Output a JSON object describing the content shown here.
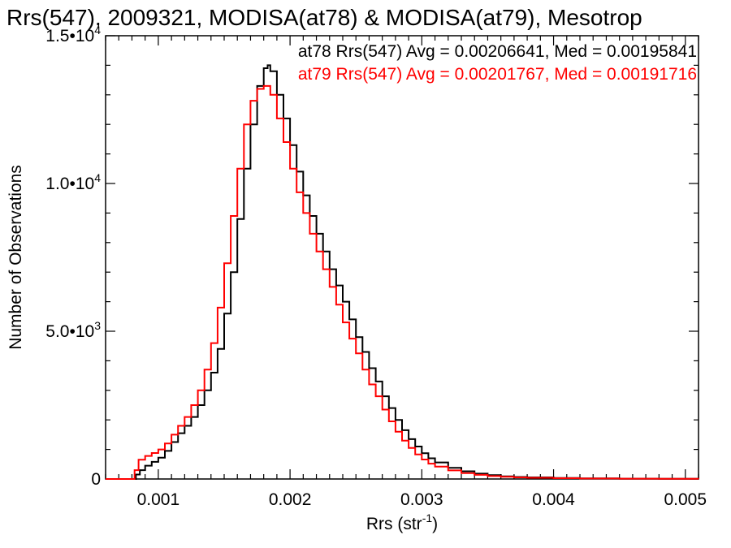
{
  "chart_data": {
    "type": "line",
    "step": true,
    "title": "Rrs(547), 2009321, MODISA(at78) & MODISA(at79), Mesotrop",
    "xlabel": "Rrs (str",
    "xlabel_sup": "-1",
    "xlabel_end": ")",
    "ylabel": "Number of Observations",
    "xlim": [
      0.0006,
      0.0051
    ],
    "ylim": [
      0,
      15000
    ],
    "x_ticks": [
      0.001,
      0.002,
      0.003,
      0.004,
      0.005
    ],
    "x_tick_labels": [
      "0.001",
      "0.002",
      "0.003",
      "0.004",
      "0.005"
    ],
    "y_ticks": [
      {
        "value": 0,
        "mant": "0",
        "exp": ""
      },
      {
        "value": 5000,
        "mant": "5.0•10",
        "exp": "3"
      },
      {
        "value": 10000,
        "mant": "1.0•10",
        "exp": "4"
      },
      {
        "value": 15000,
        "mant": "1.5•10",
        "exp": "4"
      }
    ],
    "grid": false,
    "annotations": [
      {
        "text": "at78 Rrs(547) Avg = 0.00206641, Med = 0.00195841",
        "color": "#000000"
      },
      {
        "text": "at79 Rrs(547) Avg = 0.00201767, Med = 0.00191716",
        "color": "#ff0000"
      }
    ],
    "series": [
      {
        "color": "#000000",
        "x": [
          0.0006,
          0.0008,
          0.00083,
          0.00086,
          0.0009,
          0.00095,
          0.001,
          0.00105,
          0.0011,
          0.00115,
          0.0012,
          0.00125,
          0.0013,
          0.00135,
          0.0014,
          0.00145,
          0.0015,
          0.00155,
          0.0016,
          0.00165,
          0.0017,
          0.00175,
          0.0018,
          0.00183,
          0.00185,
          0.0019,
          0.00195,
          0.002,
          0.00205,
          0.0021,
          0.00215,
          0.0022,
          0.00225,
          0.0023,
          0.00235,
          0.0024,
          0.00245,
          0.0025,
          0.00255,
          0.0026,
          0.00265,
          0.0027,
          0.00275,
          0.0028,
          0.00285,
          0.0029,
          0.00295,
          0.003,
          0.00305,
          0.0031,
          0.0032,
          0.0033,
          0.0034,
          0.0035,
          0.0036,
          0.0037,
          0.0038,
          0.004,
          0.0042,
          0.0045,
          0.0048,
          0.0051
        ],
        "y": [
          0,
          0,
          150,
          300,
          450,
          580,
          720,
          950,
          1250,
          1550,
          1800,
          2100,
          2500,
          3000,
          3600,
          4400,
          5600,
          7000,
          8800,
          10500,
          12000,
          13300,
          13900,
          14000,
          13800,
          13000,
          12200,
          11300,
          10400,
          9600,
          8900,
          8300,
          7700,
          7100,
          6550,
          6000,
          5400,
          4800,
          4300,
          3750,
          3300,
          2800,
          2400,
          2000,
          1650,
          1350,
          1100,
          870,
          700,
          560,
          380,
          260,
          180,
          130,
          90,
          70,
          55,
          35,
          22,
          12,
          6,
          4
        ]
      },
      {
        "color": "#ff0000",
        "x": [
          0.0006,
          0.0008,
          0.00082,
          0.00085,
          0.0009,
          0.00095,
          0.001,
          0.00105,
          0.0011,
          0.00115,
          0.0012,
          0.00125,
          0.0013,
          0.00135,
          0.0014,
          0.00145,
          0.0015,
          0.00155,
          0.0016,
          0.00165,
          0.0017,
          0.00175,
          0.0018,
          0.00182,
          0.00185,
          0.0019,
          0.00195,
          0.002,
          0.00205,
          0.0021,
          0.00215,
          0.0022,
          0.00225,
          0.0023,
          0.00235,
          0.0024,
          0.00245,
          0.0025,
          0.00255,
          0.0026,
          0.00265,
          0.0027,
          0.00275,
          0.0028,
          0.00285,
          0.0029,
          0.00295,
          0.003,
          0.00305,
          0.0031,
          0.0032,
          0.0033,
          0.0034,
          0.0035,
          0.0036,
          0.0037,
          0.0038,
          0.004,
          0.0042,
          0.0045,
          0.0048,
          0.0051
        ],
        "y": [
          0,
          0,
          300,
          650,
          780,
          880,
          1000,
          1200,
          1500,
          1800,
          2100,
          2500,
          3000,
          3700,
          4600,
          5800,
          7300,
          8900,
          10500,
          12000,
          12800,
          13200,
          13300,
          13300,
          13000,
          12200,
          11400,
          10500,
          9700,
          9000,
          8300,
          7700,
          7100,
          6500,
          5900,
          5300,
          4750,
          4250,
          3700,
          3200,
          2800,
          2350,
          1950,
          1600,
          1300,
          1050,
          830,
          660,
          520,
          420,
          290,
          200,
          140,
          100,
          75,
          55,
          40,
          28,
          16,
          10,
          5,
          3
        ]
      }
    ]
  }
}
